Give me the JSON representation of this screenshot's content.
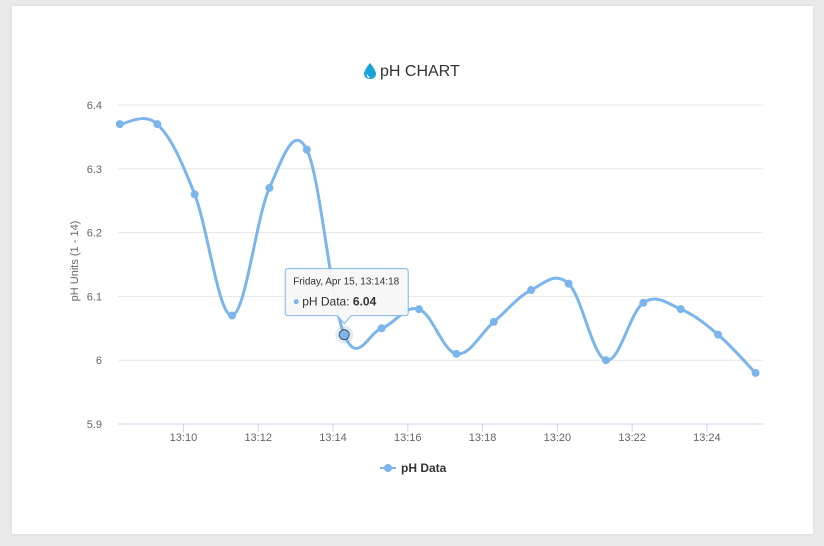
{
  "chart_data": {
    "type": "line",
    "title": "pH CHART",
    "title_icon": "water-drop-icon",
    "ylabel": "pH Units (1 - 14)",
    "ylim": [
      5.9,
      6.4
    ],
    "yticks": [
      "5.9",
      "6",
      "6.1",
      "6.2",
      "6.3",
      "6.4"
    ],
    "xlim": [
      "13:08:15",
      "13:25:30"
    ],
    "xticks": [
      "13:10",
      "13:12",
      "13:14",
      "13:16",
      "13:18",
      "13:20",
      "13:22",
      "13:24"
    ],
    "grid": true,
    "legend_position": "bottom",
    "smooth": true,
    "series": [
      {
        "name": "pH Data",
        "color": "#7cb5ec",
        "points": [
          {
            "x": "13:08:18",
            "y": 6.37
          },
          {
            "x": "13:09:18",
            "y": 6.37
          },
          {
            "x": "13:10:18",
            "y": 6.26
          },
          {
            "x": "13:11:18",
            "y": 6.07
          },
          {
            "x": "13:12:18",
            "y": 6.27
          },
          {
            "x": "13:13:18",
            "y": 6.33
          },
          {
            "x": "13:14:18",
            "y": 6.04
          },
          {
            "x": "13:15:18",
            "y": 6.05
          },
          {
            "x": "13:16:18",
            "y": 6.08
          },
          {
            "x": "13:17:18",
            "y": 6.01
          },
          {
            "x": "13:18:18",
            "y": 6.06
          },
          {
            "x": "13:19:18",
            "y": 6.11
          },
          {
            "x": "13:20:18",
            "y": 6.12
          },
          {
            "x": "13:21:18",
            "y": 6.0
          },
          {
            "x": "13:22:18",
            "y": 6.09
          },
          {
            "x": "13:23:18",
            "y": 6.08
          },
          {
            "x": "13:24:18",
            "y": 6.04
          },
          {
            "x": "13:25:18",
            "y": 5.98
          }
        ]
      }
    ],
    "tooltip": {
      "point_index": 6,
      "date_text": "Friday, Apr 15, 13:14:18",
      "series_label": "pH Data: ",
      "value_text": "6.04"
    }
  }
}
